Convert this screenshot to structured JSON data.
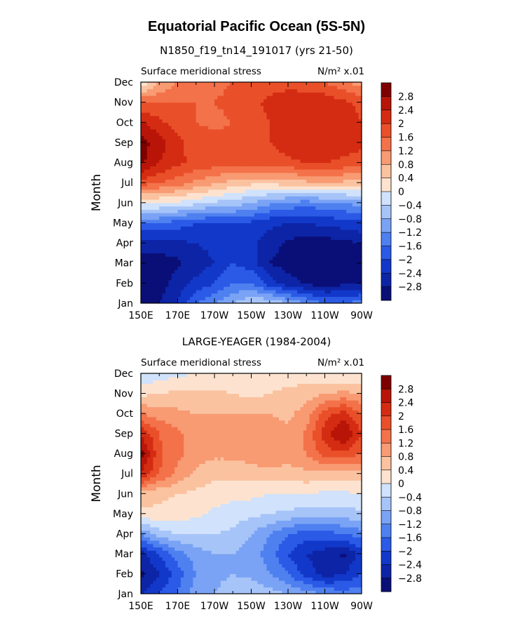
{
  "figure": {
    "title": "Equatorial Pacific Ocean (5S-5N)"
  },
  "chart_data": [
    {
      "type": "heatmap",
      "subtitle": "N1850_f19_tn14_191017 (yrs 21-50)",
      "left_label": "Surface meridional stress",
      "units_label": "N/m² x.01",
      "ylabel": "Month",
      "x_ticks": [
        "150E",
        "170E",
        "170W",
        "150W",
        "130W",
        "110W",
        "90W"
      ],
      "y_ticks": [
        "Jan",
        "Feb",
        "Mar",
        "Apr",
        "May",
        "Jun",
        "Jul",
        "Aug",
        "Sep",
        "Oct",
        "Nov",
        "Dec"
      ],
      "x_lon": [
        150,
        160,
        170,
        180,
        190,
        200,
        210,
        220,
        230,
        240,
        250,
        260,
        270
      ],
      "values": [
        [
          -2.9,
          -2.8,
          -2.4,
          -1.6,
          -1.2,
          -0.8,
          -0.4,
          -0.4,
          -0.8,
          -1.2,
          -1.6,
          -1.6,
          -1.4
        ],
        [
          -3.0,
          -3.0,
          -2.6,
          -2.3,
          -2.0,
          -1.6,
          -1.6,
          -2.2,
          -2.6,
          -2.9,
          -3.0,
          -2.9,
          -2.8
        ],
        [
          -3.0,
          -3.0,
          -2.9,
          -2.6,
          -2.4,
          -2.0,
          -2.2,
          -2.8,
          -3.0,
          -3.0,
          -3.0,
          -3.0,
          -2.9
        ],
        [
          -2.6,
          -2.6,
          -2.5,
          -2.4,
          -2.3,
          -2.2,
          -2.3,
          -2.6,
          -2.9,
          -3.0,
          -3.0,
          -2.9,
          -2.8
        ],
        [
          -1.6,
          -1.6,
          -1.8,
          -2.0,
          -2.0,
          -2.0,
          -2.1,
          -2.3,
          -2.4,
          -2.4,
          -2.3,
          -2.2,
          -2.1
        ],
        [
          0.1,
          0.0,
          -0.1,
          -0.3,
          -0.5,
          -0.6,
          -0.8,
          -1.1,
          -1.3,
          -1.4,
          -1.3,
          -1.2,
          -1.0
        ],
        [
          1.8,
          1.6,
          1.4,
          1.1,
          0.9,
          0.6,
          0.5,
          0.5,
          0.6,
          0.7,
          0.8,
          0.7,
          0.6
        ],
        [
          2.9,
          2.4,
          2.1,
          1.9,
          1.8,
          1.7,
          1.7,
          1.8,
          1.9,
          2.0,
          2.0,
          1.9,
          1.8
        ],
        [
          3.0,
          2.6,
          2.1,
          1.8,
          1.8,
          1.7,
          1.8,
          2.0,
          2.2,
          2.3,
          2.3,
          2.2,
          2.1
        ],
        [
          2.5,
          2.1,
          1.8,
          1.6,
          1.5,
          1.6,
          1.8,
          2.0,
          2.2,
          2.3,
          2.3,
          2.2,
          2.0
        ],
        [
          1.6,
          1.6,
          1.6,
          1.6,
          1.6,
          1.7,
          1.9,
          2.1,
          2.3,
          2.4,
          2.3,
          2.1,
          1.9
        ],
        [
          0.0,
          0.8,
          1.2,
          1.4,
          1.5,
          1.6,
          1.7,
          1.8,
          1.8,
          1.7,
          1.6,
          1.3,
          1.0
        ]
      ],
      "colorbar": {
        "labels": [
          "2.8",
          "2.4",
          "2",
          "1.6",
          "1.2",
          "0.8",
          "0.4",
          "0",
          "−0.4",
          "−0.8",
          "−1.2",
          "−1.6",
          "−2",
          "−2.4",
          "−2.8"
        ]
      }
    },
    {
      "type": "heatmap",
      "subtitle": "LARGE-YEAGER (1984-2004)",
      "left_label": "Surface meridional stress",
      "units_label": "N/m² x.01",
      "ylabel": "Month",
      "x_ticks": [
        "150E",
        "170E",
        "170W",
        "150W",
        "130W",
        "110W",
        "90W"
      ],
      "y_ticks": [
        "Jan",
        "Feb",
        "Mar",
        "Apr",
        "May",
        "Jun",
        "Jul",
        "Aug",
        "Sep",
        "Oct",
        "Nov",
        "Dec"
      ],
      "x_lon": [
        150,
        160,
        170,
        180,
        190,
        200,
        210,
        220,
        230,
        240,
        250,
        260,
        270
      ],
      "values": [
        [
          -2.4,
          -2.0,
          -1.6,
          -1.0,
          -0.8,
          -0.6,
          -0.5,
          -0.6,
          -0.8,
          -1.0,
          -1.2,
          -1.4,
          -1.3
        ],
        [
          -2.9,
          -2.4,
          -1.8,
          -1.2,
          -0.9,
          -0.8,
          -0.9,
          -1.2,
          -1.6,
          -2.2,
          -2.6,
          -2.4,
          -2.0
        ],
        [
          -2.6,
          -2.0,
          -1.4,
          -1.0,
          -0.8,
          -0.8,
          -1.0,
          -1.4,
          -2.0,
          -2.4,
          -2.6,
          -2.9,
          -2.2
        ],
        [
          -1.2,
          -0.6,
          -0.4,
          -0.4,
          -0.4,
          -0.5,
          -0.8,
          -1.2,
          -1.6,
          -1.8,
          -1.8,
          -1.6,
          -1.4
        ],
        [
          0.3,
          0.3,
          0.2,
          0.1,
          -0.1,
          -0.2,
          -0.3,
          -0.4,
          -0.5,
          -0.6,
          -0.6,
          -0.6,
          -0.5
        ],
        [
          0.6,
          0.5,
          0.4,
          0.3,
          0.2,
          0.1,
          0.1,
          0.0,
          0.0,
          0.0,
          -0.1,
          -0.1,
          0.0
        ],
        [
          2.4,
          1.6,
          1.1,
          0.7,
          0.5,
          0.5,
          0.6,
          0.6,
          0.6,
          0.7,
          0.7,
          0.7,
          0.6
        ],
        [
          3.0,
          1.7,
          1.3,
          1.0,
          0.9,
          0.9,
          1.0,
          1.2,
          1.0,
          1.2,
          1.8,
          1.9,
          1.6
        ],
        [
          2.4,
          1.6,
          1.3,
          1.0,
          0.9,
          0.9,
          0.9,
          1.0,
          0.9,
          1.3,
          2.2,
          2.9,
          2.0
        ],
        [
          1.2,
          1.0,
          0.9,
          0.8,
          0.8,
          0.8,
          0.8,
          0.8,
          0.7,
          1.0,
          1.8,
          2.2,
          1.6
        ],
        [
          0.3,
          0.4,
          0.5,
          0.5,
          0.5,
          0.4,
          0.3,
          0.4,
          0.5,
          0.6,
          0.8,
          0.9,
          0.8
        ],
        [
          -0.4,
          -0.2,
          -0.1,
          0.0,
          0.0,
          0.1,
          0.1,
          0.2,
          0.2,
          0.2,
          0.1,
          0.0,
          0.0
        ]
      ],
      "colorbar": {
        "labels": [
          "2.8",
          "2.4",
          "2",
          "1.6",
          "1.2",
          "0.8",
          "0.4",
          "0",
          "−0.4",
          "−0.8",
          "−1.2",
          "−1.6",
          "−2",
          "−2.4",
          "−2.8"
        ]
      }
    }
  ],
  "colorscale": {
    "levels": [
      -2.8,
      -2.4,
      -2.0,
      -1.6,
      -1.2,
      -0.8,
      -0.4,
      0.0,
      0.4,
      0.8,
      1.2,
      1.6,
      2.0,
      2.4,
      2.8
    ],
    "colors": [
      "#0a0f78",
      "#0d24a6",
      "#1238c9",
      "#2a5ae6",
      "#4f80f0",
      "#7aa3f5",
      "#a6c4f8",
      "#d0e2fc",
      "#fde3cf",
      "#fbc2a0",
      "#f89a72",
      "#f3724a",
      "#e9502a",
      "#d42c12",
      "#b81508",
      "#7f0000"
    ]
  }
}
